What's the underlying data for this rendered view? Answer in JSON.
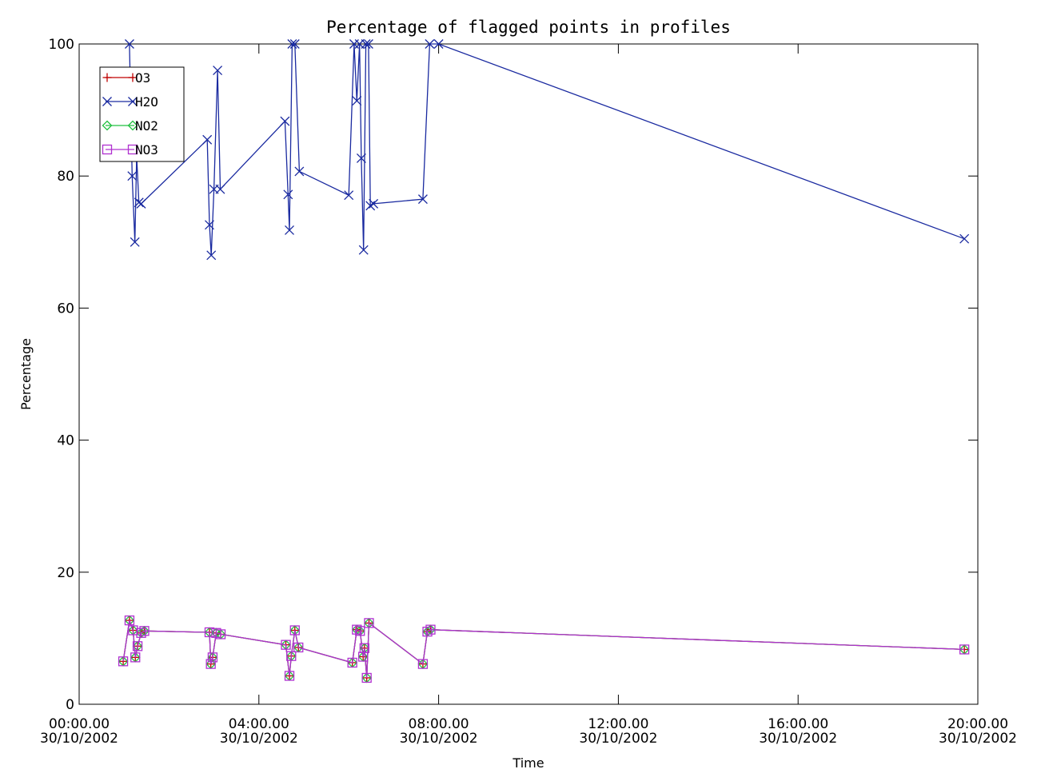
{
  "chart_data": {
    "type": "line",
    "title": "Percentage of flagged points in profiles",
    "xlabel": "Time",
    "ylabel": "Percentage",
    "xlim": [
      0,
      20
    ],
    "ylim": [
      0,
      100
    ],
    "x_unit": "hours since 00:00 30/10/2002",
    "x_ticks": [
      {
        "value": 0,
        "line1": "00:00.00",
        "line2": "30/10/2002"
      },
      {
        "value": 4,
        "line1": "04:00.00",
        "line2": "30/10/2002"
      },
      {
        "value": 8,
        "line1": "08:00.00",
        "line2": "30/10/2002"
      },
      {
        "value": 12,
        "line1": "12:00.00",
        "line2": "30/10/2002"
      },
      {
        "value": 16,
        "line1": "16:00.00",
        "line2": "30/10/2002"
      },
      {
        "value": 20,
        "line1": "20:00.00",
        "line2": "30/10/2002"
      }
    ],
    "y_ticks": [
      {
        "value": 0,
        "label": "0"
      },
      {
        "value": 20,
        "label": "20"
      },
      {
        "value": 40,
        "label": "40"
      },
      {
        "value": 60,
        "label": "60"
      },
      {
        "value": 80,
        "label": "80"
      },
      {
        "value": 100,
        "label": "100"
      }
    ],
    "legend_position": "top-left",
    "grid": false,
    "series": [
      {
        "name": "O3",
        "color": "#c00000",
        "marker": "plus",
        "x": [
          0.98,
          1.12,
          1.2,
          1.25,
          1.3,
          1.38,
          1.45,
          2.9,
          2.93,
          2.97,
          3.05,
          3.15,
          4.6,
          4.68,
          4.72,
          4.8,
          4.88,
          6.08,
          6.18,
          6.25,
          6.32,
          6.35,
          6.4,
          6.45,
          7.65,
          7.75,
          7.82,
          19.7
        ],
        "y": [
          6.5,
          12.7,
          11.2,
          7.1,
          8.8,
          10.8,
          11.1,
          10.9,
          6.1,
          7.1,
          10.8,
          10.6,
          9.0,
          4.3,
          7.3,
          11.2,
          8.6,
          6.3,
          11.3,
          11.1,
          7.2,
          8.5,
          4.0,
          12.3,
          6.1,
          11.0,
          11.3,
          8.3
        ]
      },
      {
        "name": "H2O",
        "color": "#1a2aa0",
        "marker": "x",
        "x": [
          1.12,
          1.18,
          1.24,
          1.28,
          1.33,
          1.38,
          2.85,
          2.9,
          2.94,
          3.0,
          3.08,
          3.14,
          4.58,
          4.65,
          4.68,
          4.74,
          4.8,
          4.9,
          6.0,
          6.12,
          6.18,
          6.24,
          6.28,
          6.33,
          6.38,
          6.44,
          6.48,
          6.55,
          7.65,
          7.8,
          8.0,
          19.7
        ],
        "y": [
          100,
          80,
          70,
          83,
          76,
          75.8,
          85.5,
          72.6,
          68.0,
          78,
          96,
          78,
          88.3,
          77.2,
          71.8,
          100,
          100,
          80.7,
          77.1,
          100,
          91.4,
          100,
          82.7,
          68.8,
          100,
          100,
          75.5,
          75.8,
          76.5,
          100,
          100,
          70.5
        ]
      },
      {
        "name": "NO2",
        "color": "#22c040",
        "marker": "diamond",
        "x": [
          0.98,
          1.12,
          1.2,
          1.25,
          1.3,
          1.38,
          1.45,
          2.9,
          2.93,
          2.97,
          3.05,
          3.15,
          4.6,
          4.68,
          4.72,
          4.8,
          4.88,
          6.08,
          6.18,
          6.25,
          6.32,
          6.35,
          6.4,
          6.45,
          7.65,
          7.75,
          7.82,
          19.7
        ],
        "y": [
          6.5,
          12.7,
          11.2,
          7.1,
          8.8,
          10.8,
          11.1,
          10.9,
          6.1,
          7.1,
          10.8,
          10.6,
          9.0,
          4.3,
          7.3,
          11.2,
          8.6,
          6.3,
          11.3,
          11.1,
          7.2,
          8.5,
          4.0,
          12.3,
          6.1,
          11.0,
          11.3,
          8.3
        ]
      },
      {
        "name": "NO3",
        "color": "#b030d0",
        "marker": "square",
        "x": [
          0.98,
          1.12,
          1.2,
          1.25,
          1.3,
          1.38,
          1.45,
          2.9,
          2.93,
          2.97,
          3.05,
          3.15,
          4.6,
          4.68,
          4.72,
          4.8,
          4.88,
          6.08,
          6.18,
          6.25,
          6.32,
          6.35,
          6.4,
          6.45,
          7.65,
          7.75,
          7.82,
          19.7
        ],
        "y": [
          6.5,
          12.7,
          11.2,
          7.1,
          8.8,
          10.8,
          11.1,
          10.9,
          6.1,
          7.1,
          10.8,
          10.6,
          9.0,
          4.3,
          7.3,
          11.2,
          8.6,
          6.3,
          11.3,
          11.1,
          7.2,
          8.5,
          4.0,
          12.3,
          6.1,
          11.0,
          11.3,
          8.3
        ]
      }
    ]
  }
}
